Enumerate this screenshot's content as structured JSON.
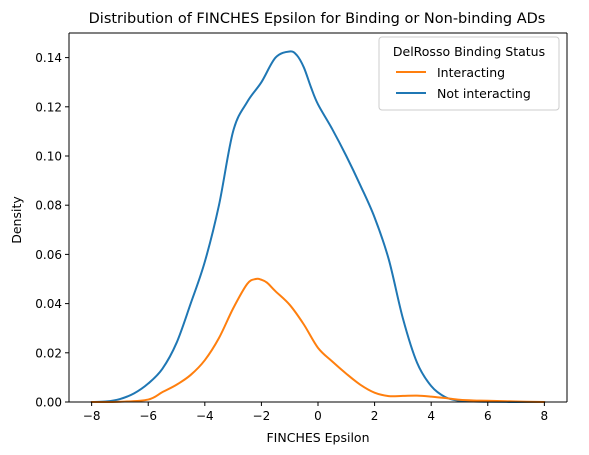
{
  "chart_data": {
    "type": "line",
    "title": "Distribution of FINCHES Epsilon for Binding or Non-binding ADs",
    "xlabel": "FINCHES Epsilon",
    "ylabel": "Density",
    "xlim": [
      -8.8,
      8.8
    ],
    "ylim": [
      0,
      0.15
    ],
    "xticks": [
      -8,
      -6,
      -4,
      -2,
      0,
      2,
      4,
      6,
      8
    ],
    "xtick_labels": [
      "−8",
      "−6",
      "−4",
      "−2",
      "0",
      "2",
      "4",
      "6",
      "8"
    ],
    "yticks": [
      0.0,
      0.02,
      0.04,
      0.06,
      0.08,
      0.1,
      0.12,
      0.14
    ],
    "ytick_labels": [
      "0.00",
      "0.02",
      "0.04",
      "0.06",
      "0.08",
      "0.10",
      "0.12",
      "0.14"
    ],
    "grid": false,
    "legend": {
      "title": "DelRosso Binding Status",
      "placement": "upper right"
    },
    "series": [
      {
        "name": "Interacting",
        "color": "#ff7f0e",
        "x": [
          -8.0,
          -7.0,
          -6.0,
          -5.5,
          -5.0,
          -4.5,
          -4.0,
          -3.5,
          -3.0,
          -2.5,
          -2.2,
          -2.0,
          -1.8,
          -1.5,
          -1.0,
          -0.5,
          0.0,
          0.5,
          1.0,
          1.5,
          2.0,
          2.5,
          3.0,
          3.5,
          4.0,
          4.5,
          5.0,
          5.5,
          6.0,
          7.0,
          8.0
        ],
        "y": [
          0.0,
          0.0001,
          0.001,
          0.004,
          0.007,
          0.011,
          0.017,
          0.026,
          0.038,
          0.048,
          0.05,
          0.0497,
          0.0485,
          0.045,
          0.0395,
          0.0315,
          0.022,
          0.0165,
          0.0115,
          0.007,
          0.0038,
          0.0024,
          0.0025,
          0.0026,
          0.0022,
          0.0016,
          0.0009,
          0.0006,
          0.0005,
          0.0002,
          0.0
        ]
      },
      {
        "name": "Not interacting",
        "color": "#1f77b4",
        "x": [
          -8.0,
          -7.5,
          -7.0,
          -6.5,
          -6.0,
          -5.5,
          -5.0,
          -4.5,
          -4.0,
          -3.5,
          -3.0,
          -2.5,
          -2.0,
          -1.5,
          -1.0,
          -0.75,
          -0.5,
          -0.25,
          0.0,
          0.5,
          1.0,
          1.5,
          2.0,
          2.5,
          3.0,
          3.5,
          4.0,
          4.5,
          5.0,
          5.5,
          6.0,
          7.0,
          8.0
        ],
        "y": [
          0.0,
          0.0002,
          0.0012,
          0.0035,
          0.0075,
          0.0135,
          0.024,
          0.04,
          0.057,
          0.08,
          0.11,
          0.122,
          0.13,
          0.14,
          0.1425,
          0.141,
          0.136,
          0.128,
          0.121,
          0.111,
          0.1,
          0.088,
          0.075,
          0.058,
          0.034,
          0.016,
          0.0065,
          0.002,
          0.0005,
          0.0002,
          0.0001,
          0.0,
          0.0
        ]
      }
    ]
  }
}
